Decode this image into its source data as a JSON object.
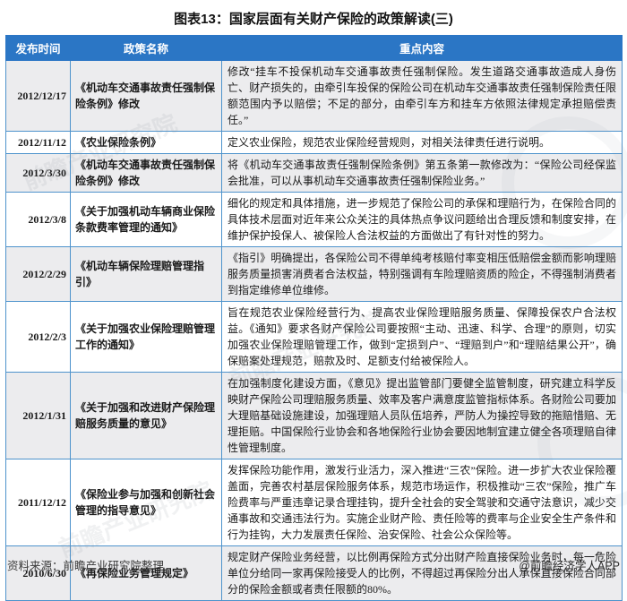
{
  "title": "图表13：国家层面有关财产保险的政策解读(三)",
  "colors": {
    "header_bg": "#2b76c5",
    "border": "#4e93cc",
    "stripe_row_bg": "#ececee",
    "header_text": "#ffffff"
  },
  "chart_data": {
    "type": "table",
    "title": "图表13：国家层面有关财产保险的政策解读(三)",
    "columns": [
      "发布时间",
      "政策名称",
      "重点内容"
    ],
    "rows": [
      {
        "date": "2012/12/17",
        "policy": "《机动车交通事故责任强制保险条例》修改",
        "content": "修改“挂车不投保机动车交通事故责任强制保险。发生道路交通事故造成人身伤亡、财产损失的，由牵引车投保的保险公司在机动车交通事故责任强制保险责任限额范围内予以赔偿；不足的部分，由牵引车方和挂车方依照法律规定承担赔偿责任。”"
      },
      {
        "date": "2012/11/12",
        "policy": "《农业保险条例》",
        "content": "定义农业保险，规范农业保险经营规则，对相关法律责任进行说明。"
      },
      {
        "date": "2012/3/30",
        "policy": "《机动车交通事故责任强制保险条例》修改",
        "content": "将《机动车交通事故责任强制保险条例》第五条第一款修改为：“保险公司经保监会批准，可以从事机动车交通事故责任强制保险业务。”"
      },
      {
        "date": "2012/3/8",
        "policy": "《关于加强机动车辆商业保险条款费率管理的通知》",
        "content": "细化的规定和具体措施，进一步规范了保险公司的承保和理赔行为，在保险合同的具体技术层面对近年来公众关注的具体热点争议问题给出合理反馈和制度安排，在维护保护投保人、被保险人合法权益的方面做出了有针对性的努力。"
      },
      {
        "date": "2012/2/29",
        "policy": "《机动车辆保险理赔管理指引》",
        "content": "《指引》明确提出，各保险公司不得单纯考核赔付率变相压低赔偿金额而影响理赔服务质量损害消费者合法权益，特别强调有车险理赔资质的险企，不得强制消费者到指定维修单位维修。"
      },
      {
        "date": "2012/2/3",
        "policy": "《关于加强农业保险理赔管理工作的通知》",
        "content": "旨在规范农业保险经营行为、提高农业保险理赔服务质量、保障投保农户合法权益。《通知》要求各财产保险公司要按照“主动、迅速、科学、合理”的原则，切实加强农业保险理赔管理工作，做到“定损到户”、“理赔到户”和“理赔结果公开”，确保赔案处理规范，赔款及时、足额支付给被保险人。"
      },
      {
        "date": "2012/1/31",
        "policy": "《关于加强和改进财产保险理赔服务质量的意见》",
        "content": "在加强制度化建设方面，《意见》提出监管部门要健全监管制度，研究建立科学反映财产保险公司理赔服务质量、效率及客户满意度监管指标体系。各财险公司要加大理赔基础设施建设，加强理赔人员队伍培养，严防人为操控导致的拖赔惜赔、无理拒赔。中国保险行业协会和各地保险行业协会要因地制宜建立健全各项理赔自律性管理制度。"
      },
      {
        "date": "2011/12/12",
        "policy": "《保险业参与加强和创新社会管理的指导意见》",
        "content": "发挥保险功能作用，激发行业活力，深入推进“三农”保险。进一步扩大农业保险覆盖面，完善农村基层保险服务体系，规范市场运作，积极推动“三农”保险，推广车险费率与严重违章记录合理挂钩，提升全社会的安全驾驶和交通守法意识，减少交通事故和交通违法行为。实施企业财产险、责任险等的费率与企业安全生产条件和行为挂钩，大力发展责任保险、治安保险、社会公众保险等。"
      },
      {
        "date": "2010/6/30",
        "policy": "《再保险业务管理规定》",
        "content": "规定财产保险业务经营，以比例再保险方式分出财产险直接保险业务时，每一危险单位分给同一家再保险接受人的比例，不得超过再保险分出人承保直接保险合同部分的保险金额或者责任限额的80%。"
      }
    ]
  },
  "footer": {
    "source": "资料来源：前瞻产业研究院整理",
    "credit": "@前瞻经济学人APP"
  },
  "watermark": {
    "text": "前瞻产业研究院"
  }
}
